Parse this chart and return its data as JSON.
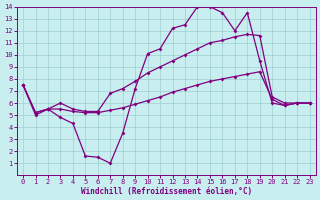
{
  "xlabel": "Windchill (Refroidissement éolien,°C)",
  "bg_color": "#c8eef0",
  "grid_color": "#9ecfcf",
  "line_color": "#800080",
  "xlim": [
    -0.5,
    23.5
  ],
  "ylim": [
    0,
    14
  ],
  "xticks": [
    0,
    1,
    2,
    3,
    4,
    5,
    6,
    7,
    8,
    9,
    10,
    11,
    12,
    13,
    14,
    15,
    16,
    17,
    18,
    19,
    20,
    21,
    22,
    23
  ],
  "yticks": [
    1,
    2,
    3,
    4,
    5,
    6,
    7,
    8,
    9,
    10,
    11,
    12,
    13,
    14
  ],
  "line1_x": [
    0,
    1,
    2,
    3,
    4,
    5,
    6,
    7,
    8,
    9,
    10,
    11,
    12,
    13,
    14,
    15,
    16,
    17,
    18,
    19,
    20,
    21,
    22,
    23
  ],
  "line1_y": [
    7.5,
    5.0,
    5.5,
    4.8,
    4.3,
    1.6,
    1.5,
    1.0,
    3.5,
    7.2,
    10.1,
    10.5,
    12.2,
    12.5,
    14.0,
    14.0,
    13.5,
    12.0,
    13.5,
    9.5,
    6.0,
    5.8,
    6.0,
    6.0
  ],
  "line2_x": [
    0,
    1,
    2,
    3,
    4,
    5,
    6,
    7,
    8,
    9,
    10,
    11,
    12,
    13,
    14,
    15,
    16,
    17,
    18,
    19,
    20,
    21,
    22,
    23
  ],
  "line2_y": [
    7.5,
    5.2,
    5.5,
    6.0,
    5.5,
    5.3,
    5.3,
    6.8,
    7.2,
    7.8,
    8.5,
    9.0,
    9.5,
    10.0,
    10.5,
    11.0,
    11.2,
    11.5,
    11.7,
    11.6,
    6.5,
    6.0,
    6.0,
    6.0
  ],
  "line3_x": [
    0,
    1,
    2,
    3,
    4,
    5,
    6,
    7,
    8,
    9,
    10,
    11,
    12,
    13,
    14,
    15,
    16,
    17,
    18,
    19,
    20,
    21,
    22,
    23
  ],
  "line3_y": [
    7.5,
    5.2,
    5.5,
    5.5,
    5.3,
    5.2,
    5.2,
    5.4,
    5.6,
    5.9,
    6.2,
    6.5,
    6.9,
    7.2,
    7.5,
    7.8,
    8.0,
    8.2,
    8.4,
    8.6,
    6.3,
    5.8,
    6.0,
    6.0
  ],
  "marker": "D",
  "marker_size": 2.0,
  "linewidth": 0.9,
  "tick_fontsize": 5,
  "xlabel_fontsize": 5.5
}
